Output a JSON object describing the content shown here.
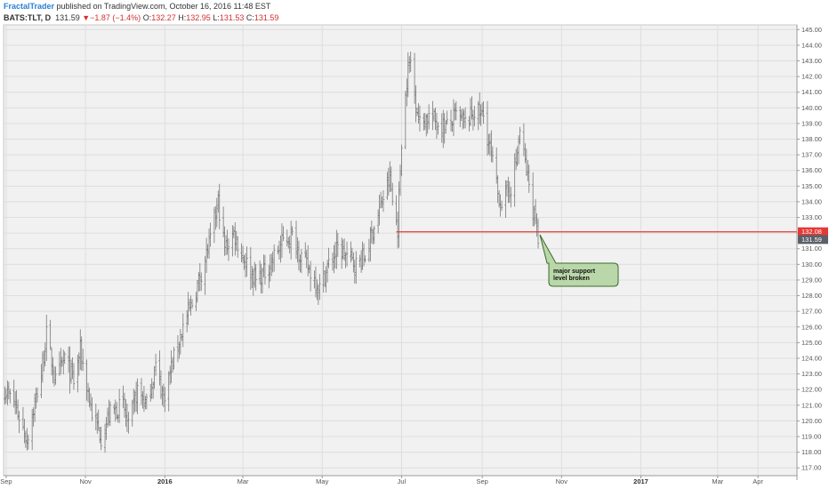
{
  "header": {
    "author": "FractalTrader",
    "published": "published on TradingView.com, October 16, 2016 11:48 EST"
  },
  "ticker": {
    "symbol": "BATS:TLT, D",
    "last": "131.59",
    "change_arrow": "▼",
    "change": "−1.87 (−1.4%)",
    "open_label": "O:",
    "open": "132.27",
    "high_label": "H:",
    "high": "132.95",
    "low_label": "L:",
    "low": "131.53",
    "close_label": "C:",
    "close": "131.59"
  },
  "colors": {
    "support_line": "#e53935",
    "price_badge": "#e53935",
    "last_badge": "#5b6068",
    "bars": "#777777",
    "annotation_fill": "#b9d7a8",
    "annotation_border": "#3d6b2c"
  },
  "chart_data": {
    "type": "ohlc",
    "ylim": [
      116.5,
      145.3
    ],
    "yticks": [
      117,
      118,
      119,
      120,
      121,
      122,
      123,
      124,
      125,
      126,
      127,
      128,
      129,
      130,
      131,
      132,
      133,
      134,
      135,
      136,
      137,
      138,
      139,
      140,
      141,
      142,
      143,
      144,
      145
    ],
    "ytick_labels": [
      "117.00",
      "118.00",
      "119.00",
      "120.00",
      "121.00",
      "122.00",
      "123.00",
      "124.00",
      "125.00",
      "126.00",
      "127.00",
      "128.00",
      "129.00",
      "130.00",
      "131.00",
      "132.00",
      "133.00",
      "134.00",
      "135.00",
      "136.00",
      "137.00",
      "138.00",
      "139.00",
      "140.00",
      "141.00",
      "142.00",
      "143.00",
      "144.00",
      "145.00"
    ],
    "xlim": [
      "2015-08-30",
      "2017-05-01"
    ],
    "xticks": [
      {
        "date": "2015-09-01",
        "label": "Sep",
        "bold": false
      },
      {
        "date": "2015-11-01",
        "label": "Nov",
        "bold": false
      },
      {
        "date": "2016-01-01",
        "label": "2016",
        "bold": true
      },
      {
        "date": "2016-03-01",
        "label": "Mar",
        "bold": false
      },
      {
        "date": "2016-05-01",
        "label": "May",
        "bold": false
      },
      {
        "date": "2016-07-01",
        "label": "Jul",
        "bold": false
      },
      {
        "date": "2016-09-01",
        "label": "Sep",
        "bold": false
      },
      {
        "date": "2016-11-01",
        "label": "Nov",
        "bold": false
      },
      {
        "date": "2017-01-01",
        "label": "2017",
        "bold": true
      },
      {
        "date": "2017-03-01",
        "label": "Mar",
        "bold": false
      },
      {
        "date": "2017-04-01",
        "label": "Apr",
        "bold": false
      }
    ],
    "price_path": [
      [
        "2015-08-31",
        122.0
      ],
      [
        "2015-09-08",
        121.0
      ],
      [
        "2015-09-17",
        118.8
      ],
      [
        "2015-09-28",
        123.0
      ],
      [
        "2015-10-02",
        125.5
      ],
      [
        "2015-10-09",
        122.5
      ],
      [
        "2015-10-16",
        124.0
      ],
      [
        "2015-10-23",
        122.5
      ],
      [
        "2015-10-28",
        124.5
      ],
      [
        "2015-11-06",
        120.5
      ],
      [
        "2015-11-13",
        119.0
      ],
      [
        "2015-11-20",
        120.5
      ],
      [
        "2015-11-30",
        121.0
      ],
      [
        "2015-12-04",
        119.5
      ],
      [
        "2015-12-11",
        122.0
      ],
      [
        "2015-12-18",
        121.0
      ],
      [
        "2015-12-25",
        123.5
      ],
      [
        "2015-12-31",
        121.5
      ],
      [
        "2016-01-08",
        124.0
      ],
      [
        "2016-01-15",
        126.0
      ],
      [
        "2016-01-22",
        127.5
      ],
      [
        "2016-01-29",
        129.5
      ],
      [
        "2016-02-05",
        131.5
      ],
      [
        "2016-02-11",
        134.0
      ],
      [
        "2016-02-16",
        131.0
      ],
      [
        "2016-02-23",
        132.0
      ],
      [
        "2016-03-01",
        130.5
      ],
      [
        "2016-03-11",
        129.0
      ],
      [
        "2016-03-18",
        129.5
      ],
      [
        "2016-03-25",
        130.5
      ],
      [
        "2016-04-01",
        131.5
      ],
      [
        "2016-04-08",
        131.8
      ],
      [
        "2016-04-15",
        130.5
      ],
      [
        "2016-04-22",
        129.5
      ],
      [
        "2016-04-29",
        128.5
      ],
      [
        "2016-05-06",
        130.0
      ],
      [
        "2016-05-13",
        131.0
      ],
      [
        "2016-05-20",
        130.5
      ],
      [
        "2016-05-27",
        130.0
      ],
      [
        "2016-06-03",
        130.5
      ],
      [
        "2016-06-10",
        132.5
      ],
      [
        "2016-06-16",
        134.0
      ],
      [
        "2016-06-22",
        135.5
      ],
      [
        "2016-06-24",
        134.0
      ],
      [
        "2016-06-28",
        132.3
      ],
      [
        "2016-07-01",
        138.0
      ],
      [
        "2016-07-06",
        142.5
      ],
      [
        "2016-07-08",
        143.0
      ],
      [
        "2016-07-11",
        141.0
      ],
      [
        "2016-07-15",
        139.0
      ],
      [
        "2016-07-22",
        139.5
      ],
      [
        "2016-07-29",
        139.0
      ],
      [
        "2016-08-05",
        138.8
      ],
      [
        "2016-08-12",
        139.5
      ],
      [
        "2016-08-19",
        139.0
      ],
      [
        "2016-08-26",
        139.8
      ],
      [
        "2016-09-02",
        139.5
      ],
      [
        "2016-09-09",
        136.5
      ],
      [
        "2016-09-13",
        134.5
      ],
      [
        "2016-09-16",
        134.0
      ],
      [
        "2016-09-20",
        134.5
      ],
      [
        "2016-09-23",
        135.0
      ],
      [
        "2016-09-27",
        136.5
      ],
      [
        "2016-09-30",
        138.5
      ],
      [
        "2016-10-05",
        136.0
      ],
      [
        "2016-10-10",
        133.5
      ],
      [
        "2016-10-13",
        132.8
      ],
      [
        "2016-10-14",
        131.6
      ]
    ],
    "support_level": 132.08,
    "support_start": "2016-06-27",
    "last_price": 131.59,
    "price_labels": [
      {
        "value": "132.08",
        "kind": "support"
      },
      {
        "value": "131.59",
        "kind": "last"
      }
    ]
  },
  "annotation": {
    "line1": "major support",
    "line2": "level broken"
  }
}
